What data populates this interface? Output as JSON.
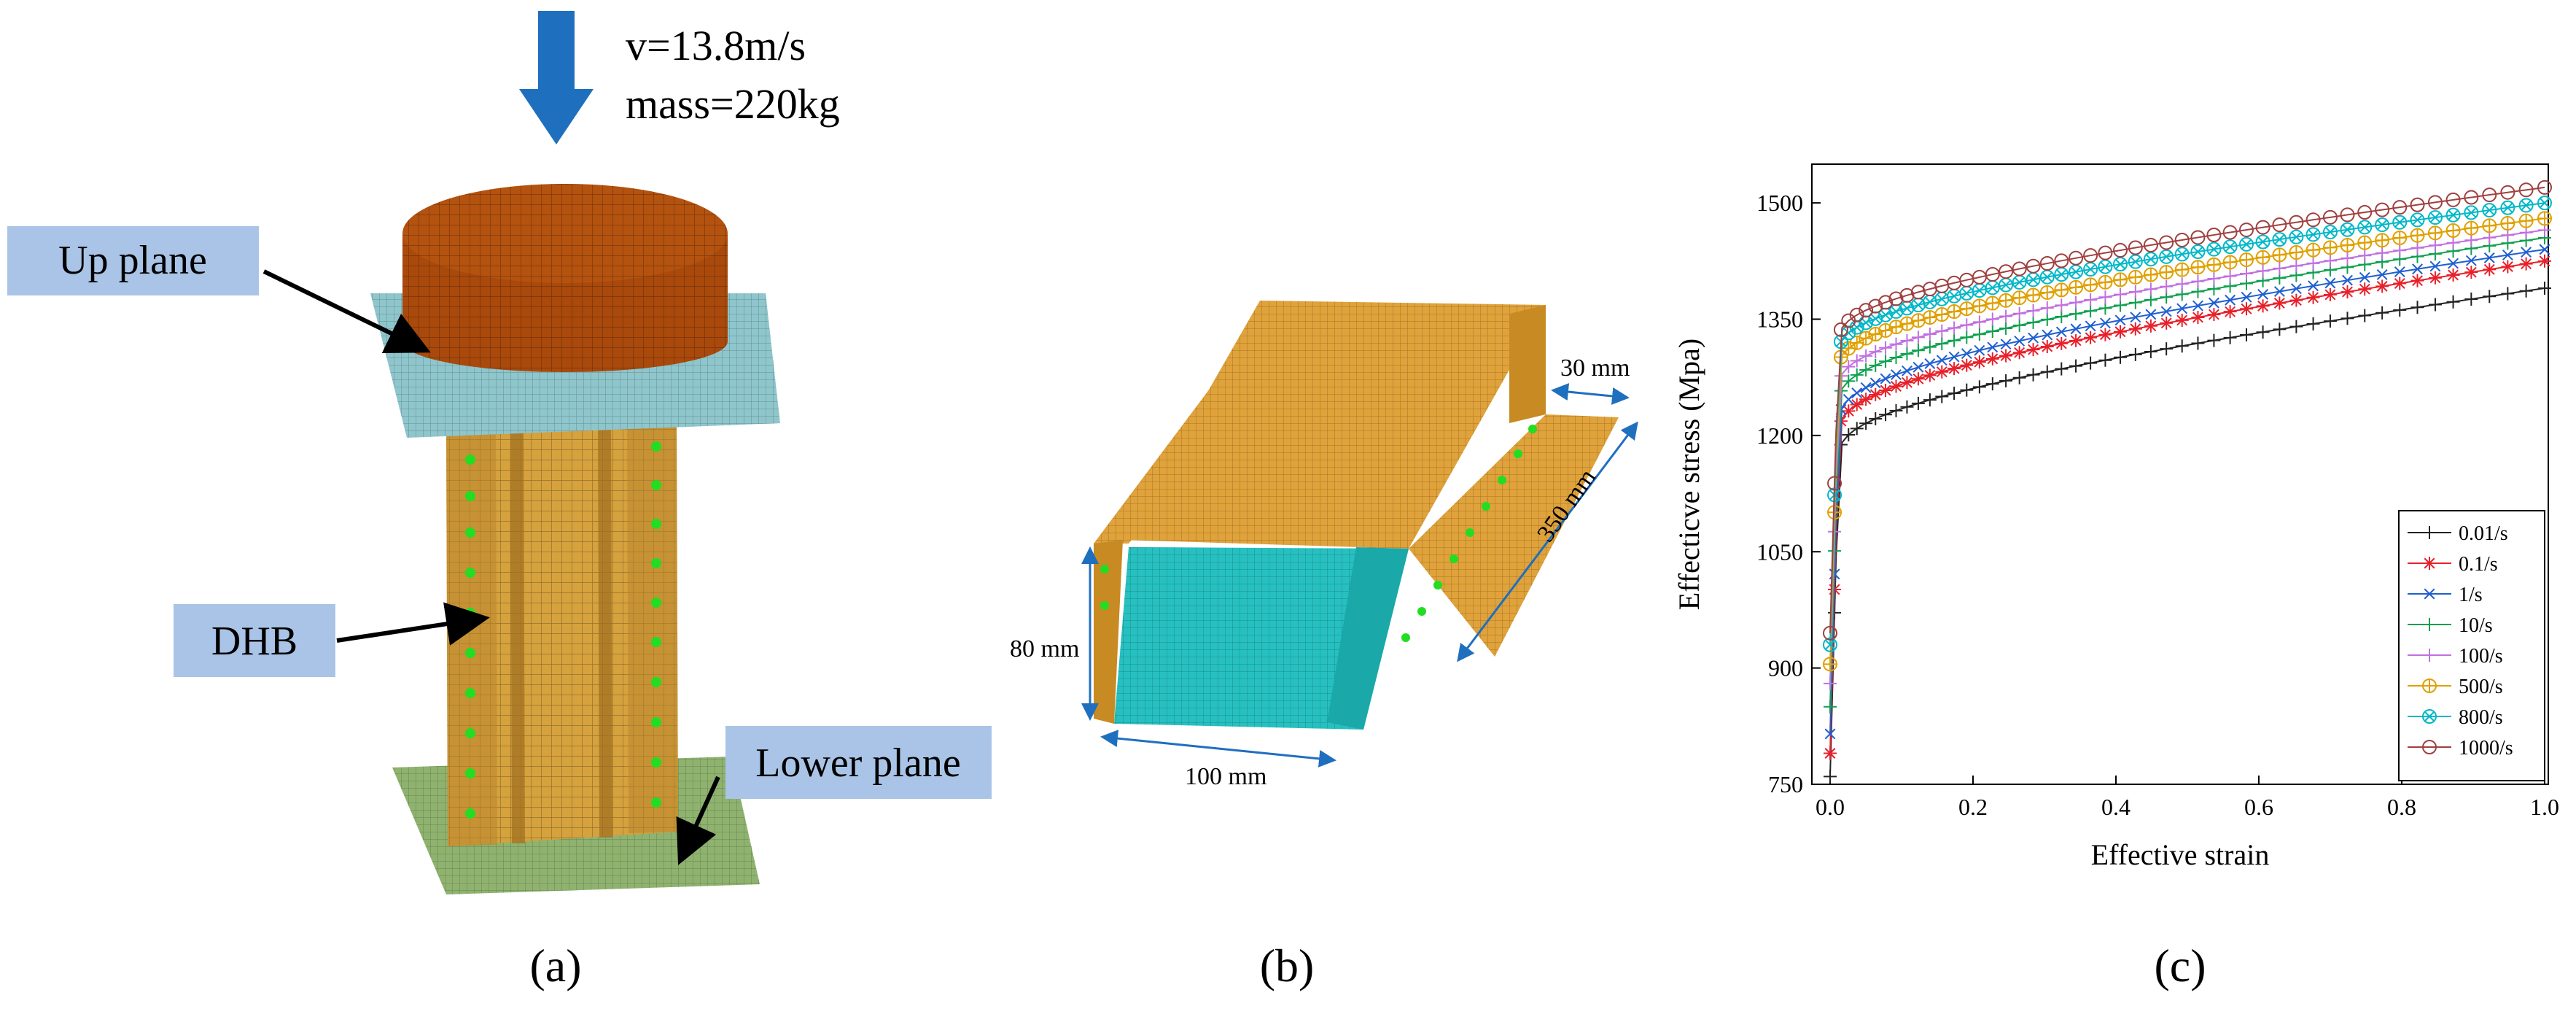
{
  "panel_a": {
    "velocity_label": "v=13.8m/s",
    "mass_label": "mass=220kg",
    "up_plane_label": "Up plane",
    "dhb_label": "DHB",
    "lower_plane_label": "Lower plane",
    "caption": "(a)"
  },
  "panel_b": {
    "dim_flange": "30 mm",
    "dim_length": "350 mm",
    "dim_height": "80 mm",
    "dim_width": "100 mm",
    "caption": "(b)"
  },
  "panel_c": {
    "caption": "(c)"
  },
  "colors": {
    "arrow": "#1f6fbf",
    "callout_box": "#a9c4e6",
    "impactor": "#b4520f",
    "column": "#d5a23e",
    "channel_top": "#e0a23a",
    "channel_inner": "#27c0c0",
    "plane_top": "#8ec6cc",
    "plane_bottom": "#8fb36f",
    "weld_dots": "#22dd22"
  },
  "chart_data": {
    "type": "line",
    "xlabel": "Effective strain",
    "ylabel": "Effecticve stress (Mpa)",
    "xlim": [
      0,
      1.0
    ],
    "ylim": [
      750,
      1550
    ],
    "xticks": [
      "0.0",
      "0.2",
      "0.4",
      "0.6",
      "0.8",
      "1.0"
    ],
    "yticks": [
      "750",
      "900",
      "1050",
      "1200",
      "1350",
      "1500"
    ],
    "legend_position": "bottom-right",
    "series": [
      {
        "name": "0.01/s",
        "color": "#222222",
        "marker": "plus",
        "y0": 760,
        "y_end": 1390,
        "y_at_0_1": 1230
      },
      {
        "name": "0.1/s",
        "color": "#e8202a",
        "marker": "star",
        "y0": 790,
        "y_end": 1425,
        "y_at_0_1": 1260
      },
      {
        "name": "1/s",
        "color": "#1f5fd0",
        "marker": "x",
        "y0": 815,
        "y_end": 1440,
        "y_at_0_1": 1275
      },
      {
        "name": "10/s",
        "color": "#10a050",
        "marker": "plus",
        "y0": 850,
        "y_end": 1455,
        "y_at_0_1": 1300
      },
      {
        "name": "100/s",
        "color": "#c070e0",
        "marker": "plus",
        "y0": 880,
        "y_end": 1465,
        "y_at_0_1": 1320
      },
      {
        "name": "500/s",
        "color": "#e0a000",
        "marker": "circle-plus",
        "y0": 905,
        "y_end": 1480,
        "y_at_0_1": 1345
      },
      {
        "name": "800/s",
        "color": "#00b8c8",
        "marker": "circle-x",
        "y0": 930,
        "y_end": 1500,
        "y_at_0_1": 1365
      },
      {
        "name": "1000/s",
        "color": "#a04040",
        "marker": "circle",
        "y0": 945,
        "y_end": 1520,
        "y_at_0_1": 1380
      }
    ]
  }
}
